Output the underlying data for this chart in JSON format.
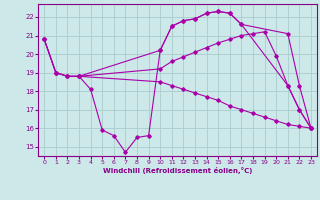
{
  "xlabel": "Windchill (Refroidissement éolien,°C)",
  "background_color": "#cce8e8",
  "grid_color": "#aacccc",
  "line_color": "#aa00aa",
  "xlim": [
    -0.5,
    23.5
  ],
  "ylim": [
    14.5,
    22.7
  ],
  "yticks": [
    15,
    16,
    17,
    18,
    19,
    20,
    21,
    22
  ],
  "xticks": [
    0,
    1,
    2,
    3,
    4,
    5,
    6,
    7,
    8,
    9,
    10,
    11,
    12,
    13,
    14,
    15,
    16,
    17,
    18,
    19,
    20,
    21,
    22,
    23
  ],
  "lines": [
    {
      "x": [
        0,
        1,
        2,
        3,
        10,
        11,
        12,
        13,
        14,
        15,
        16,
        17,
        21,
        22,
        23
      ],
      "y": [
        20.8,
        19.0,
        18.8,
        18.8,
        20.2,
        21.5,
        21.8,
        21.9,
        22.2,
        22.3,
        22.2,
        21.6,
        21.1,
        18.3,
        16.0
      ]
    },
    {
      "x": [
        0,
        1,
        2,
        3,
        10,
        11,
        12,
        13,
        14,
        15,
        16,
        17,
        18,
        19,
        20,
        21,
        22,
        23
      ],
      "y": [
        20.8,
        19.0,
        18.8,
        18.8,
        19.2,
        19.6,
        19.85,
        20.1,
        20.35,
        20.6,
        20.8,
        21.0,
        21.1,
        21.2,
        19.9,
        18.3,
        17.0,
        16.0
      ]
    },
    {
      "x": [
        0,
        1,
        2,
        3,
        10,
        11,
        12,
        13,
        14,
        15,
        16,
        17,
        18,
        19,
        20,
        21,
        22,
        23
      ],
      "y": [
        20.8,
        19.0,
        18.8,
        18.8,
        18.5,
        18.3,
        18.1,
        17.9,
        17.7,
        17.5,
        17.2,
        17.0,
        16.8,
        16.6,
        16.4,
        16.2,
        16.1,
        16.0
      ]
    },
    {
      "x": [
        3,
        4,
        5,
        6,
        7,
        8,
        9,
        10,
        11,
        12,
        13,
        14,
        15,
        16,
        17,
        21,
        22,
        23
      ],
      "y": [
        18.8,
        18.1,
        15.9,
        15.6,
        14.7,
        15.5,
        15.6,
        20.2,
        21.5,
        21.8,
        21.9,
        22.2,
        22.3,
        22.2,
        21.6,
        18.3,
        17.0,
        16.0
      ]
    }
  ]
}
